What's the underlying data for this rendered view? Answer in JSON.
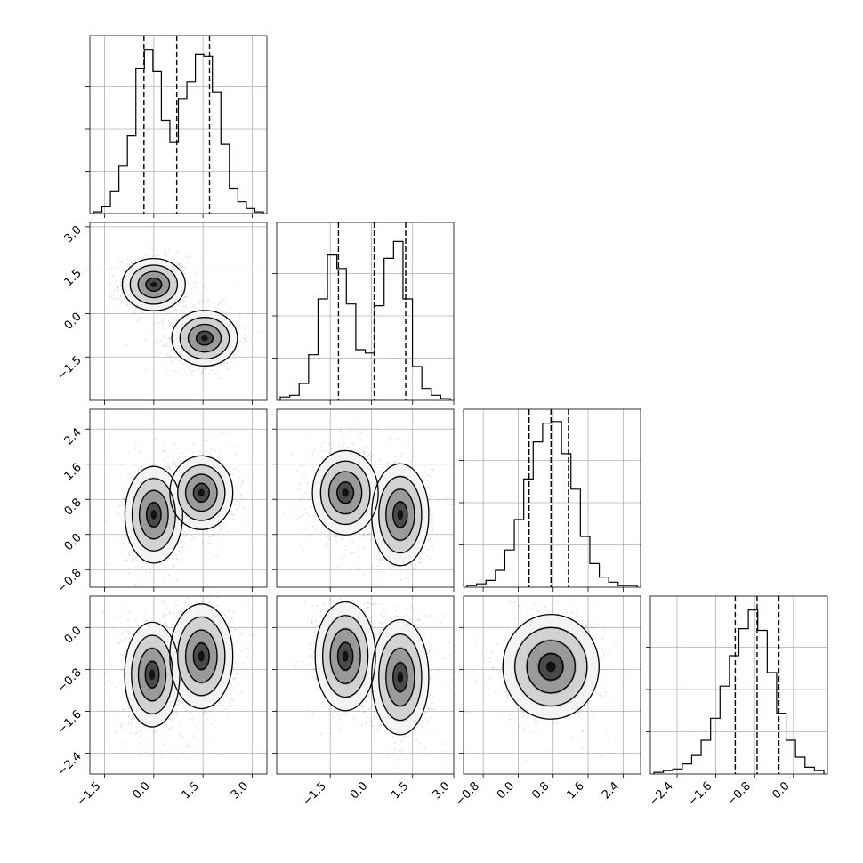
{
  "chart_data": {
    "type": "corner",
    "params": [
      {
        "xlim": [
          -1.95,
          3.45
        ],
        "ticks": [
          -1.5,
          0.0,
          1.5,
          3.0
        ],
        "tick_labels": [
          "−1.5",
          "0.0",
          "1.5",
          "3.0"
        ],
        "quantiles": [
          -0.3,
          0.7,
          1.7
        ],
        "hist": [
          0.01,
          0.04,
          0.13,
          0.28,
          0.46,
          0.86,
          0.97,
          0.84,
          0.55,
          0.42,
          0.68,
          0.78,
          0.94,
          0.93,
          0.72,
          0.41,
          0.15,
          0.07,
          0.03,
          0.01
        ]
      },
      {
        "xlim": [
          -3.45,
          3.0
        ],
        "ticks": [
          -1.5,
          0.0,
          1.5,
          3.0
        ],
        "tick_labels": [
          "−1.5",
          "0.0",
          "1.5",
          "3.0"
        ],
        "ylim": [
          -3.0,
          3.15
        ],
        "yticks": [
          -1.5,
          0.0,
          1.5,
          3.0
        ],
        "ytick_labels": [
          "−1.5",
          "0.0",
          "1.5",
          "3.0"
        ],
        "quantiles": [
          -1.2,
          0.1,
          1.25
        ],
        "hist": [
          0.02,
          0.03,
          0.1,
          0.27,
          0.6,
          0.86,
          0.78,
          0.57,
          0.3,
          0.28,
          0.56,
          0.84,
          0.94,
          0.6,
          0.2,
          0.07,
          0.03,
          0.01
        ]
      },
      {
        "xlim": [
          -1.25,
          2.8
        ],
        "ticks": [
          -0.8,
          0.0,
          0.8,
          1.6,
          2.4
        ],
        "tick_labels": [
          "−0.8",
          "0.0",
          "0.8",
          "1.6",
          "2.4"
        ],
        "ylim": [
          -1.2,
          2.85
        ],
        "yticks": [
          -0.8,
          0.0,
          0.8,
          1.6,
          2.4
        ],
        "ytick_labels": [
          "−0.8",
          "0.0",
          "0.8",
          "1.6",
          "2.4"
        ],
        "quantiles": [
          0.25,
          0.75,
          1.15
        ],
        "hist": [
          0.01,
          0.02,
          0.04,
          0.1,
          0.22,
          0.4,
          0.64,
          0.86,
          0.97,
          0.98,
          0.79,
          0.58,
          0.3,
          0.14,
          0.06,
          0.03,
          0.01,
          0.01
        ]
      },
      {
        "xlim": [
          -2.95,
          0.7
        ],
        "ticks": [
          -2.4,
          -1.6,
          -0.8,
          0.0
        ],
        "tick_labels": [
          "−2.4",
          "−1.6",
          "−0.8",
          "0.0"
        ],
        "ylim": [
          -2.8,
          0.6
        ],
        "yticks": [
          -2.4,
          -1.6,
          -0.8,
          0.0
        ],
        "ytick_labels": [
          "−2.4",
          "−1.6",
          "−0.8",
          "0.0"
        ],
        "quantiles": [
          -1.2,
          -0.75,
          -0.3
        ],
        "hist": [
          0.01,
          0.02,
          0.03,
          0.06,
          0.11,
          0.2,
          0.33,
          0.52,
          0.7,
          0.86,
          0.97,
          0.85,
          0.6,
          0.36,
          0.2,
          0.1,
          0.04,
          0.02
        ]
      }
    ],
    "pairs": [
      {
        "row": 1,
        "col": 0,
        "modes": [
          {
            "x": 0.0,
            "y": 1.0,
            "sx": 0.48,
            "sy": 0.45
          },
          {
            "x": 1.55,
            "y": -0.85,
            "sx": 0.5,
            "sy": 0.48
          }
        ]
      },
      {
        "row": 2,
        "col": 0,
        "modes": [
          {
            "x": 0.0,
            "y": 0.45,
            "sx": 0.44,
            "sy": 0.55
          },
          {
            "x": 1.45,
            "y": 0.95,
            "sx": 0.48,
            "sy": 0.42
          }
        ]
      },
      {
        "row": 2,
        "col": 1,
        "modes": [
          {
            "x": -0.95,
            "y": 0.95,
            "sx": 0.6,
            "sy": 0.48
          },
          {
            "x": 1.05,
            "y": 0.45,
            "sx": 0.52,
            "sy": 0.58
          }
        ]
      },
      {
        "row": 3,
        "col": 0,
        "modes": [
          {
            "x": -0.05,
            "y": -0.9,
            "sx": 0.42,
            "sy": 0.5
          },
          {
            "x": 1.45,
            "y": -0.55,
            "sx": 0.48,
            "sy": 0.5
          }
        ]
      },
      {
        "row": 3,
        "col": 1,
        "modes": [
          {
            "x": -0.95,
            "y": -0.55,
            "sx": 0.55,
            "sy": 0.52
          },
          {
            "x": 1.05,
            "y": -0.95,
            "sx": 0.52,
            "sy": 0.55
          }
        ]
      },
      {
        "row": 3,
        "col": 2,
        "modes": [
          {
            "x": 0.75,
            "y": -0.75,
            "sx": 0.55,
            "sy": 0.5
          }
        ]
      }
    ],
    "grid": true
  }
}
